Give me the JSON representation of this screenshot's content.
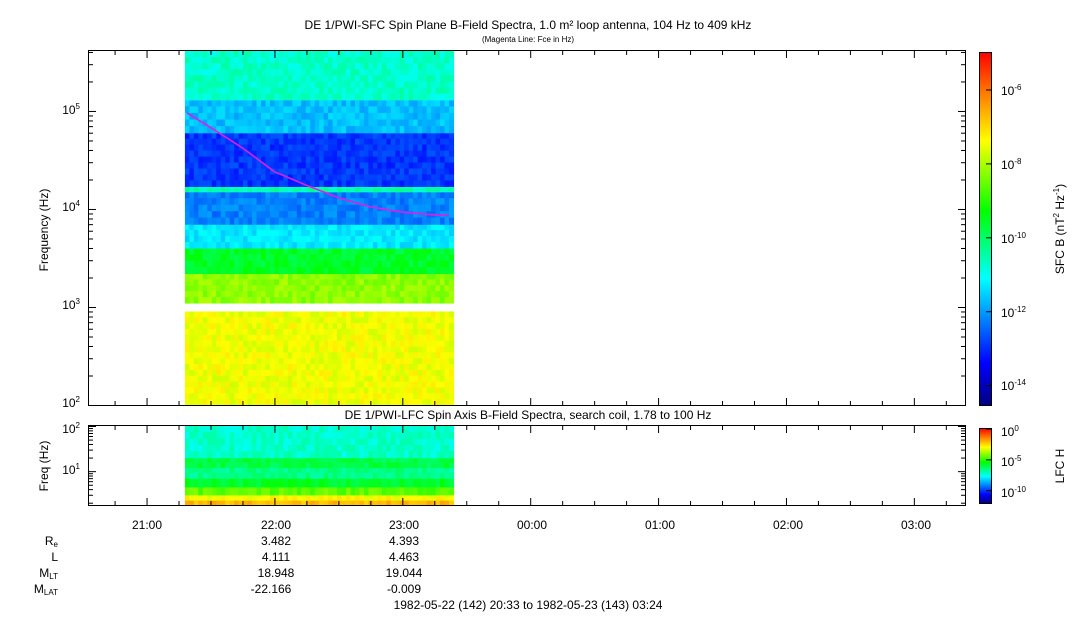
{
  "chart_data": [
    {
      "type": "heatmap",
      "title": "DE 1/PWI-SFC  Spin Plane B-Field Spectra, 1.0 m² loop antenna, 104 Hz to 409 kHz",
      "subtitle": "(Magenta Line: Fce in Hz)",
      "ylabel": "Frequency (Hz)",
      "y_scale": "log",
      "ylim": [
        100,
        409000
      ],
      "y_ticks": [
        {
          "exp": "2",
          "v": 100
        },
        {
          "exp": "3",
          "v": 1000
        },
        {
          "exp": "4",
          "v": 10000
        },
        {
          "exp": "5",
          "v": 100000
        }
      ],
      "data_time_range": [
        "21:18",
        "23:24"
      ],
      "gap_freq_range_hz": [
        900,
        1100
      ],
      "colorbar": {
        "label": "SFC B (nT² Hz⁻¹)",
        "scale": "log",
        "range": [
          3e-15,
          1e-05
        ],
        "tick_exps": [
          "-6",
          "-8",
          "-10",
          "-12",
          "-14"
        ]
      },
      "fce_line": {
        "color": "#e01ee0",
        "points": [
          {
            "time": "21:19",
            "freq_hz": 95000
          },
          {
            "time": "21:30",
            "freq_hz": 68000
          },
          {
            "time": "21:45",
            "freq_hz": 42000
          },
          {
            "time": "22:00",
            "freq_hz": 24000
          },
          {
            "time": "22:15",
            "freq_hz": 17500
          },
          {
            "time": "22:30",
            "freq_hz": 13000
          },
          {
            "time": "22:45",
            "freq_hz": 10500
          },
          {
            "time": "23:00",
            "freq_hz": 9300
          },
          {
            "time": "23:15",
            "freq_hz": 8700
          },
          {
            "time": "23:22",
            "freq_hz": 8600
          }
        ]
      },
      "bands": [
        {
          "f_lo": 100,
          "f_hi": 900,
          "level": 0.74
        },
        {
          "f_lo": 1100,
          "f_hi": 2200,
          "level": 0.66
        },
        {
          "f_lo": 2200,
          "f_hi": 4000,
          "level": 0.52
        },
        {
          "f_lo": 4000,
          "f_hi": 7000,
          "level": 0.34
        },
        {
          "f_lo": 7000,
          "f_hi": 15000,
          "level": 0.24
        },
        {
          "f_lo": 15000,
          "f_hi": 17000,
          "level": 0.42
        },
        {
          "f_lo": 17000,
          "f_hi": 60000,
          "level": 0.17
        },
        {
          "f_lo": 60000,
          "f_hi": 130000,
          "level": 0.3
        },
        {
          "f_lo": 130000,
          "f_hi": 409000,
          "level": 0.4
        }
      ]
    },
    {
      "type": "heatmap",
      "title": "DE 1/PWI-LFC  Spin Axis B-Field Spectra, search coil, 1.78 to 100 Hz",
      "ylabel": "Freq (Hz)",
      "y_scale": "log",
      "ylim": [
        1.78,
        100
      ],
      "y_ticks": [
        {
          "exp": "1",
          "v": 10
        },
        {
          "exp": "2",
          "v": 100
        }
      ],
      "data_time_range": [
        "21:18",
        "23:24"
      ],
      "colorbar": {
        "label": "LFC H",
        "scale": "log",
        "range": [
          1e-12,
          1
        ],
        "tick_exps": [
          "0",
          "-5",
          "-10"
        ]
      },
      "bands": [
        {
          "f_lo": 1.78,
          "f_hi": 2.3,
          "level": 0.82
        },
        {
          "f_lo": 2.3,
          "f_hi": 3.0,
          "level": 0.75
        },
        {
          "f_lo": 3.0,
          "f_hi": 4.5,
          "level": 0.62
        },
        {
          "f_lo": 4.5,
          "f_hi": 7.0,
          "level": 0.52
        },
        {
          "f_lo": 7.0,
          "f_hi": 12.0,
          "level": 0.45
        },
        {
          "f_lo": 12.0,
          "f_hi": 20.0,
          "level": 0.5
        },
        {
          "f_lo": 20.0,
          "f_hi": 100.0,
          "level": 0.4
        }
      ]
    }
  ],
  "x_axis": {
    "time_range": [
      "20:33",
      "03:24"
    ],
    "tick_labels": [
      "21:00",
      "22:00",
      "23:00",
      "00:00",
      "01:00",
      "02:00",
      "03:00"
    ],
    "minor_every_minutes": 15
  },
  "ephemeris": {
    "rows": [
      {
        "label": "R",
        "sub": "e",
        "values": [
          "3.482",
          "4.393"
        ]
      },
      {
        "label": "L",
        "sub": "",
        "values": [
          "4.111",
          "4.463"
        ]
      },
      {
        "label": "M",
        "sub": "LT",
        "values": [
          "18.948",
          "19.044"
        ]
      },
      {
        "label": "M",
        "sub": "LAT",
        "values": [
          "-22.166",
          "-0.009"
        ]
      }
    ],
    "at_times": [
      "22:00",
      "23:00"
    ]
  },
  "footer": "1982-05-22 (142) 20:33 to 1982-05-23 (143) 03:24"
}
